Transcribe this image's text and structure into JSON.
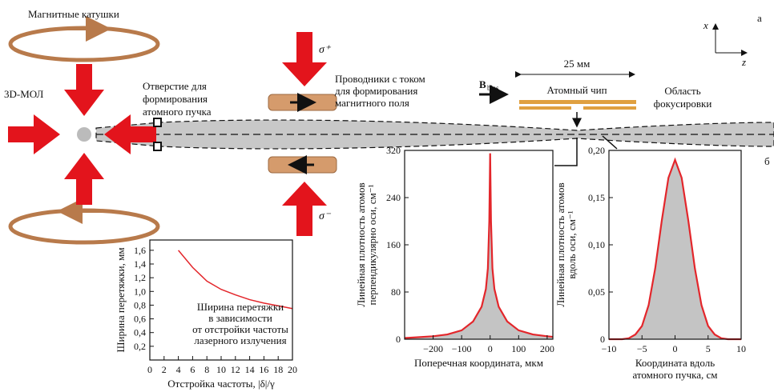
{
  "diagram": {
    "coils_label": "Магнитные катушки",
    "mot_label": "3D-МОЛ",
    "aperture_label": [
      "Отверстие для",
      "формирования",
      "атомного пучка"
    ],
    "sigma_plus": "σ⁺",
    "sigma_minus": "σ⁻",
    "wires_label": [
      "Проводники с током",
      "для формирования",
      "магнитного поля"
    ],
    "bias_main": "B",
    "bias_sub": "bias",
    "chip_size": "25 мм",
    "chip_label": "Атомный чип",
    "focus_label": [
      "Область",
      "фокусировки"
    ],
    "axis_x": "x",
    "axis_z": "z",
    "panel_a": "а",
    "panel_b": "б"
  },
  "chart_data": [
    {
      "type": "line",
      "xlabel": [
        "Отстройка частоты, |δ|/γ"
      ],
      "ylabel": [
        "Ширина перетяжки, мм"
      ],
      "annotation": [
        "Ширина перетяжки",
        "в зависимости",
        "от отстройки частоты",
        "лазерного излучения"
      ],
      "x": [
        4,
        6,
        8,
        10,
        12,
        14,
        16,
        18,
        20
      ],
      "series": [
        {
          "color": "#e3262b",
          "values": [
            1.6,
            1.35,
            1.15,
            1.03,
            0.95,
            0.88,
            0.83,
            0.79,
            0.75
          ]
        }
      ],
      "xlim": [
        0,
        20
      ],
      "xticks": [
        0,
        2,
        4,
        6,
        8,
        10,
        12,
        14,
        16,
        18,
        20
      ],
      "ylim": [
        0,
        1.75
      ],
      "yticks": [
        {
          "value": 0.2,
          "label": "0,2"
        },
        {
          "value": 0.4,
          "label": "0,4"
        },
        {
          "value": 0.6,
          "label": "0,6"
        },
        {
          "value": 0.8,
          "label": "0,8"
        },
        {
          "value": 1.0,
          "label": "1,0"
        },
        {
          "value": 1.2,
          "label": "1,2"
        },
        {
          "value": 1.4,
          "label": "1,4"
        },
        {
          "value": 1.6,
          "label": "1,6"
        }
      ]
    },
    {
      "type": "area",
      "xlabel": [
        "Поперечная координата, мкм"
      ],
      "ylabel": [
        "Линейная плотность атомов",
        "перпендикулярно оси, см⁻¹"
      ],
      "x": [
        -300,
        -200,
        -150,
        -100,
        -60,
        -30,
        -15,
        -8,
        -3,
        0,
        3,
        8,
        15,
        30,
        60,
        100,
        150,
        200,
        220
      ],
      "series": [
        {
          "color": "#e3262b",
          "fill": "#c4c4c4",
          "values": [
            2,
            5,
            8,
            15,
            30,
            55,
            85,
            120,
            200,
            315,
            200,
            120,
            85,
            55,
            30,
            15,
            8,
            5,
            4
          ]
        }
      ],
      "xlim": [
        -300,
        220
      ],
      "xticks": [
        {
          "value": -200,
          "label": "−200"
        },
        {
          "value": -100,
          "label": "−100"
        },
        0,
        100,
        200
      ],
      "ylim": [
        0,
        320
      ],
      "yticks": [
        0,
        80,
        160,
        240,
        320
      ]
    },
    {
      "type": "area",
      "xlabel": [
        "Координата вдоль",
        "атомного пучка, см"
      ],
      "ylabel": [
        "Линейная плотность атомов",
        "вдоль оси, см⁻¹"
      ],
      "x": [
        -10,
        -9,
        -8,
        -7,
        -6,
        -5,
        -4,
        -3,
        -2,
        -1,
        0,
        1,
        2,
        3,
        4,
        5,
        6,
        7,
        8,
        9,
        10
      ],
      "series": [
        {
          "color": "#e3262b",
          "fill": "#c4c4c4",
          "values": [
            0,
            0,
            0,
            0.001,
            0.005,
            0.014,
            0.036,
            0.075,
            0.126,
            0.171,
            0.19,
            0.171,
            0.126,
            0.075,
            0.036,
            0.014,
            0.005,
            0.001,
            0,
            0,
            0
          ]
        }
      ],
      "xlim": [
        -10,
        10
      ],
      "xticks": [
        {
          "value": -10,
          "label": "−10"
        },
        {
          "value": -5,
          "label": "−5"
        },
        0,
        5,
        10
      ],
      "ylim": [
        0,
        0.2
      ],
      "yticks": [
        0,
        {
          "value": 0.05,
          "label": "0,05"
        },
        {
          "value": 0.1,
          "label": "0,10"
        },
        {
          "value": 0.15,
          "label": "0,15"
        },
        {
          "value": 0.2,
          "label": "0,20"
        }
      ]
    }
  ]
}
